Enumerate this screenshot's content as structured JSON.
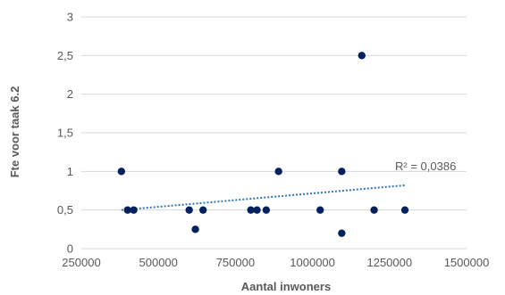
{
  "chart_data": {
    "type": "scatter",
    "xlabel": "Aantal inwoners",
    "ylabel": "Fte voor taak 6.2",
    "xlim": [
      250000,
      1500000
    ],
    "ylim": [
      0,
      3
    ],
    "xticks": [
      250000,
      500000,
      750000,
      1000000,
      1250000,
      1500000
    ],
    "xtick_labels": [
      "250000",
      "500000",
      "750000",
      "1000000",
      "1250000",
      "1500000"
    ],
    "yticks": [
      0,
      0.5,
      1,
      1.5,
      2,
      2.5,
      3
    ],
    "ytick_labels": [
      "0",
      "0,5",
      "1",
      "1,5",
      "2",
      "2,5",
      "3"
    ],
    "grid": "horizontal",
    "legend": "none",
    "colors": {
      "points": "#002060",
      "trendline": "#2E75B6",
      "grid": "#d9d9d9",
      "text": "#595959"
    },
    "series": [
      {
        "points": [
          {
            "x": 380000,
            "y": 1
          },
          {
            "x": 400000,
            "y": 0.5
          },
          {
            "x": 420000,
            "y": 0.5
          },
          {
            "x": 600000,
            "y": 0.5
          },
          {
            "x": 620000,
            "y": 0.25
          },
          {
            "x": 645000,
            "y": 0.5
          },
          {
            "x": 800000,
            "y": 0.5
          },
          {
            "x": 820000,
            "y": 0.5
          },
          {
            "x": 850000,
            "y": 0.5
          },
          {
            "x": 890000,
            "y": 1
          },
          {
            "x": 1025000,
            "y": 0.5
          },
          {
            "x": 1095000,
            "y": 0.2
          },
          {
            "x": 1095000,
            "y": 1
          },
          {
            "x": 1160000,
            "y": 2.5
          },
          {
            "x": 1200000,
            "y": 0.5
          },
          {
            "x": 1300000,
            "y": 0.5
          }
        ]
      }
    ],
    "trendline": {
      "type": "linear",
      "x_start": 380000,
      "y_start": 0.5,
      "x_end": 1300000,
      "y_end": 0.82
    },
    "annotations": [
      {
        "text": "R² = 0,0386"
      }
    ]
  }
}
